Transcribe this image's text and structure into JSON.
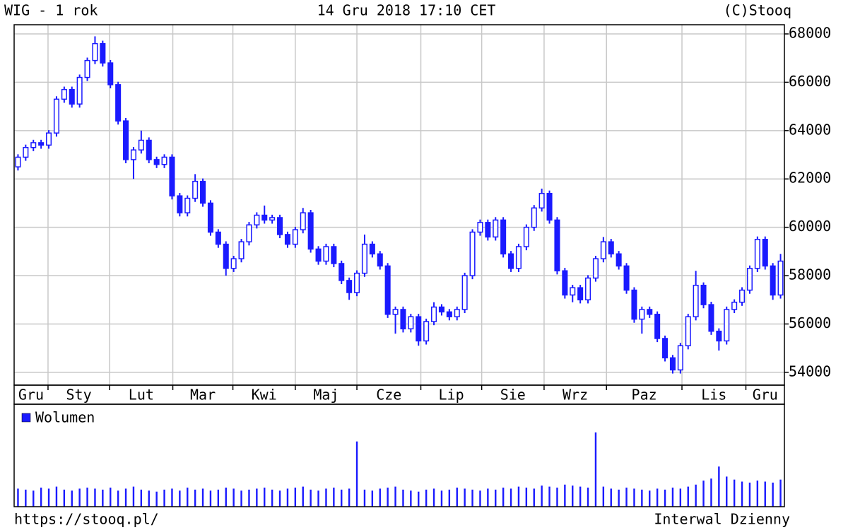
{
  "chart_data": [
    {
      "type": "candlestick",
      "title": "WIG - 1 rok",
      "date": "14 Gru 2018 17:10 CET",
      "credit": "(C)Stooq",
      "source": "https://stooq.pl/",
      "interval": "Interwal Dzienny",
      "color": "#1a1aff",
      "grid": true,
      "xlim": [
        0,
        100
      ],
      "xticks": [
        {
          "value": 0,
          "label": "Gru"
        },
        {
          "value": 4.4,
          "label": "Sty"
        },
        {
          "value": 12.4,
          "label": "Lut"
        },
        {
          "value": 20.6,
          "label": "Mar"
        },
        {
          "value": 28.4,
          "label": "Kwi"
        },
        {
          "value": 36.5,
          "label": "Maj"
        },
        {
          "value": 44.5,
          "label": "Cze"
        },
        {
          "value": 52.8,
          "label": "Lip"
        },
        {
          "value": 60.7,
          "label": "Sie"
        },
        {
          "value": 68.8,
          "label": "Wrz"
        },
        {
          "value": 76.9,
          "label": "Paz"
        },
        {
          "value": 86.7,
          "label": "Lis"
        },
        {
          "value": 95,
          "label": "Gru"
        }
      ],
      "ylim": [
        53470,
        68380
      ],
      "yticks": [
        54000,
        56000,
        58000,
        60000,
        62000,
        64000,
        66000,
        68000
      ],
      "open": [
        62500,
        62900,
        63300,
        63500,
        63400,
        63900,
        65300,
        65700,
        65100,
        66200,
        66900,
        67600,
        66800,
        65900,
        64400,
        62800,
        63200,
        63600,
        62800,
        62600,
        62900,
        61300,
        60600,
        61200,
        61900,
        61000,
        59800,
        59300,
        58300,
        58700,
        59400,
        60100,
        60500,
        60300,
        60400,
        59700,
        59300,
        59900,
        60600,
        59100,
        58600,
        59200,
        58500,
        57800,
        57300,
        58100,
        59300,
        58900,
        58400,
        56400,
        56600,
        55800,
        56300,
        55300,
        56100,
        56700,
        56500,
        56300,
        56600,
        58000,
        59800,
        60200,
        59600,
        60300,
        58900,
        58300,
        59200,
        60000,
        60800,
        61400,
        60300,
        58200,
        57200,
        57500,
        57000,
        57900,
        58700,
        59400,
        58900,
        58400,
        57400,
        56200,
        56600,
        56400,
        55400,
        54600,
        54100,
        55100,
        56300,
        57600,
        56800,
        55700,
        55300,
        56600,
        56900,
        57400,
        58300,
        59500,
        58400,
        57200
      ],
      "high": [
        63020,
        63420,
        63620,
        63620,
        64020,
        65420,
        65820,
        65820,
        66320,
        67020,
        67900,
        67720,
        66920,
        66020,
        64520,
        63320,
        64000,
        63720,
        62920,
        63020,
        63020,
        61420,
        61320,
        62200,
        62020,
        61120,
        59920,
        59420,
        58820,
        59520,
        60220,
        60620,
        60900,
        60520,
        60520,
        59820,
        60020,
        60800,
        60720,
        59220,
        59320,
        59320,
        58620,
        57920,
        58220,
        59700,
        59420,
        59020,
        58520,
        56720,
        56720,
        56420,
        56420,
        56220,
        56900,
        56820,
        56620,
        56720,
        58120,
        59920,
        60320,
        60320,
        60420,
        60420,
        59020,
        59320,
        60120,
        60920,
        61600,
        61520,
        60420,
        58320,
        57620,
        57620,
        58020,
        58820,
        59600,
        59520,
        59020,
        58520,
        57520,
        56720,
        56720,
        56520,
        55520,
        54720,
        55220,
        56420,
        58200,
        57720,
        56920,
        55820,
        56720,
        57020,
        57520,
        58420,
        59620,
        59620,
        58520,
        58900
      ],
      "low": [
        62350,
        62750,
        63150,
        63250,
        63250,
        63750,
        65150,
        64950,
        64950,
        66050,
        66750,
        66650,
        65750,
        64250,
        62650,
        62000,
        63050,
        62650,
        62450,
        62450,
        61150,
        60450,
        60450,
        61050,
        60850,
        59650,
        59150,
        58000,
        58150,
        58550,
        59250,
        59950,
        60150,
        60150,
        59550,
        59150,
        59150,
        59750,
        58950,
        58450,
        58450,
        58350,
        57650,
        57000,
        57150,
        57950,
        58750,
        58250,
        56250,
        55600,
        55650,
        55650,
        55100,
        55150,
        55950,
        56350,
        56150,
        56150,
        56450,
        57850,
        59650,
        59450,
        59450,
        58750,
        58150,
        58150,
        59050,
        59850,
        60650,
        60150,
        58050,
        57050,
        56900,
        56850,
        56850,
        57750,
        58550,
        58750,
        58250,
        57250,
        56050,
        55600,
        56250,
        55250,
        54450,
        53950,
        53950,
        54950,
        56150,
        56650,
        55550,
        54900,
        55150,
        56450,
        56750,
        57250,
        58150,
        58250,
        57000,
        57050
      ],
      "close": [
        62900,
        63300,
        63500,
        63400,
        63900,
        65300,
        65700,
        65100,
        66200,
        66900,
        67600,
        66800,
        65900,
        64400,
        62800,
        63200,
        63600,
        62800,
        62600,
        62900,
        61300,
        60600,
        61200,
        61900,
        61000,
        59800,
        59300,
        58300,
        58700,
        59400,
        60100,
        60500,
        60300,
        60400,
        59700,
        59300,
        59900,
        60600,
        59100,
        58600,
        59200,
        58500,
        57800,
        57300,
        58100,
        59300,
        58900,
        58400,
        56400,
        56600,
        55800,
        56300,
        55300,
        56100,
        56700,
        56500,
        56300,
        56600,
        58000,
        59800,
        60200,
        59600,
        60300,
        58900,
        58300,
        59200,
        60000,
        60800,
        61400,
        60300,
        58200,
        57200,
        57500,
        57000,
        57900,
        58700,
        59400,
        58900,
        58400,
        57400,
        56200,
        56600,
        56400,
        55400,
        54600,
        54100,
        55100,
        56300,
        57600,
        56800,
        55700,
        55300,
        56600,
        56900,
        57400,
        58300,
        59500,
        58400,
        57200,
        58600
      ]
    },
    {
      "type": "bar",
      "xlim": [
        0,
        100
      ],
      "ylim": [
        0,
        100
      ],
      "series": [
        {
          "name": "Wolumen",
          "color": "#1a1aff",
          "values": [
            18,
            17,
            16,
            19,
            18,
            20,
            17,
            16,
            18,
            19,
            18,
            17,
            19,
            16,
            18,
            20,
            17,
            16,
            15,
            17,
            18,
            16,
            19,
            17,
            18,
            16,
            17,
            19,
            18,
            16,
            17,
            18,
            19,
            17,
            16,
            18,
            19,
            20,
            17,
            16,
            18,
            19,
            17,
            18,
            65,
            17,
            16,
            18,
            19,
            20,
            17,
            16,
            15,
            17,
            18,
            16,
            17,
            19,
            18,
            17,
            16,
            18,
            17,
            19,
            18,
            20,
            19,
            18,
            21,
            20,
            19,
            22,
            21,
            20,
            19,
            74,
            20,
            18,
            17,
            19,
            18,
            17,
            16,
            18,
            17,
            19,
            18,
            20,
            22,
            26,
            28,
            40,
            30,
            27,
            25,
            24,
            26,
            25,
            24,
            27
          ]
        }
      ]
    }
  ]
}
